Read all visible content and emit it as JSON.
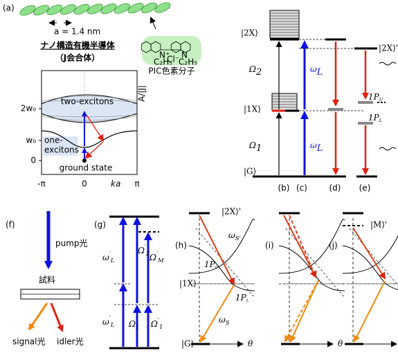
{
  "panel_a": {
    "label": "(a)",
    "lattice_constant": "a = 1.4 nm",
    "title": "ナノ構造有機半導体",
    "subtitle": "（J会合体）",
    "molecule_name": "PIC色素分子",
    "molecule_atoms": [
      "N⁺",
      "N",
      "Cl⁻",
      "C₂H₅",
      "C₂H₅"
    ],
    "y_tick_labels": [
      "2w₀",
      "w₀",
      "0"
    ],
    "x_tick_labels": [
      "-π",
      "0",
      "π"
    ],
    "x_axis_label": "ka",
    "two_exciton_label": "two-excitons",
    "one_exciton_label": [
      "one-",
      "excitons"
    ],
    "ground_state_label": "ground state",
    "shift_label": "A/|J|"
  },
  "panel_bcde": {
    "labels": [
      "(b)",
      "(c)",
      "(d)",
      "(e)"
    ],
    "two_exciton": "|2X⟩",
    "one_exciton": "|1X⟩",
    "ground": "|G⟩",
    "two_exciton_dressed": "|2X⟩'",
    "rabi": [
      {
        "main": "Ω",
        "sub": "2"
      },
      {
        "main": "Ω",
        "sub": "1"
      }
    ],
    "laser": [
      {
        "main": "ω",
        "sub": "L"
      },
      {
        "main": "ω",
        "sub": "L"
      }
    ],
    "polaritons": [
      {
        "main": "1P",
        "sub": "U"
      },
      {
        "main": "1P",
        "sub": "L"
      }
    ]
  },
  "panel_f": {
    "label": "(f)",
    "pump": "pump光",
    "sample": "試料",
    "signal": "signal光",
    "idler": "idler光"
  },
  "panel_g": {
    "label": "(g)",
    "symbols": [
      {
        "main": "ω",
        "sup": "′",
        "sub": "L"
      },
      {
        "main": "ω",
        "sup": "′",
        "sub": "L"
      },
      {
        "main": "Ω",
        "sup": "′",
        "sub": "2"
      },
      {
        "main": "Ω",
        "sup": "′",
        "sub": "M"
      },
      {
        "main": "Ω",
        "sub": "1"
      },
      {
        "main": "Ω",
        "sup": "′",
        "sub": "1"
      }
    ]
  },
  "panel_h": {
    "label": "(h)",
    "two_exciton_dressed": "|2X⟩'",
    "one_exciton": "|1X⟩",
    "ground": "|G⟩",
    "signal_dressed": {
      "main": "ω",
      "sub": "S'"
    },
    "signal": {
      "main": "ω",
      "sub": "S"
    },
    "polaritons": [
      {
        "main": "1P",
        "sub": "U"
      },
      {
        "main": "1P",
        "sub": "L"
      }
    ],
    "axis": "θ"
  },
  "panel_i": {
    "label": "(i)",
    "axis": "θ"
  },
  "panel_j": {
    "label": "(j)",
    "mixed": "|M⟩'",
    "axis": "θ"
  }
}
